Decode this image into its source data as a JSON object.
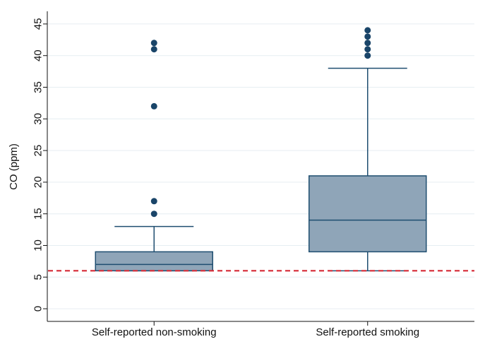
{
  "chart_data": {
    "type": "box",
    "title": "",
    "xlabel": "",
    "ylabel": "CO (ppm)",
    "ylim": [
      -2,
      47
    ],
    "yticks": [
      0,
      5,
      10,
      15,
      20,
      25,
      30,
      35,
      40,
      45
    ],
    "grid": true,
    "categories": [
      "Self-reported non-smoking",
      "Self-reported smoking"
    ],
    "boxes": [
      {
        "category": "Self-reported non-smoking",
        "whisker_low": 6,
        "q1": 6,
        "median": 7,
        "q3": 9,
        "whisker_high": 13,
        "outliers": [
          15,
          17,
          32,
          41,
          42
        ]
      },
      {
        "category": "Self-reported smoking",
        "whisker_low": 6,
        "q1": 9,
        "median": 14,
        "q3": 21,
        "whisker_high": 38,
        "outliers": [
          40,
          41,
          42,
          43,
          44
        ]
      }
    ],
    "reference_line": {
      "y": 6,
      "style": "dashed",
      "color": "#d62a36"
    },
    "colors": {
      "box_fill": "#8fa5b8",
      "box_stroke": "#1f4e70",
      "outlier": "#1a4569",
      "grid": "#e6eef2",
      "axis": "#111111"
    }
  }
}
